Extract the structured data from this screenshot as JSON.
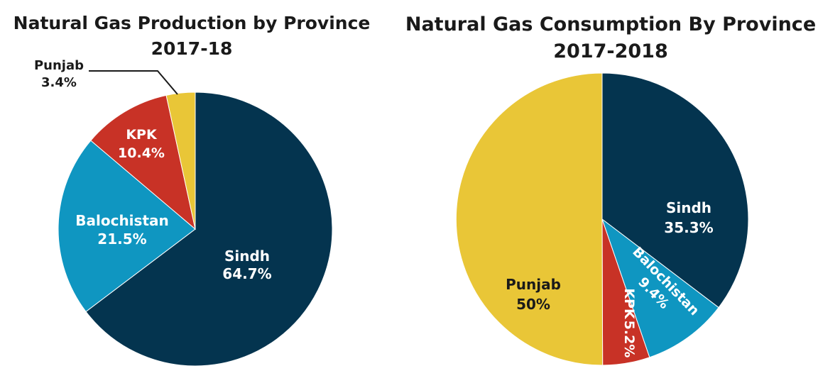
{
  "colors": {
    "sindh": "#04344f",
    "balochistan": "#0f96c1",
    "kpk": "#c83226",
    "punjab": "#e9c637",
    "label_light": "#ffffff",
    "label_dark": "#1a1a1a"
  },
  "chart_data": [
    {
      "type": "pie",
      "title": "Natural Gas Production by Province",
      "subtitle": "2017-18",
      "categories": [
        "Sindh",
        "Balochistan",
        "KPK",
        "Punjab"
      ],
      "values": [
        64.7,
        21.5,
        10.4,
        3.4
      ],
      "value_labels": [
        "64.7%",
        "21.5%",
        "10.4%",
        "3.4%"
      ],
      "start": "12 o'clock",
      "direction": "clockwise"
    },
    {
      "type": "pie",
      "title": "Natural Gas Consumption By Province",
      "subtitle": "2017-2018",
      "categories": [
        "Sindh",
        "Balochistan",
        "KPK",
        "Punjab"
      ],
      "values": [
        35.3,
        9.4,
        5.2,
        50
      ],
      "value_labels": [
        "35.3%",
        "9.4%",
        "5.2%",
        "50%"
      ],
      "start": "12 o'clock",
      "direction": "clockwise"
    }
  ]
}
